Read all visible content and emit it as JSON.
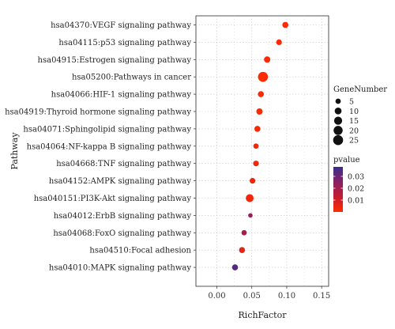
{
  "chart_data": {
    "type": "scatter",
    "xlabel": "RichFactor",
    "ylabel": "Pathway",
    "xlim": [
      -0.03,
      0.16
    ],
    "x_ticks": [
      0.0,
      0.05,
      0.1,
      0.15
    ],
    "x_tick_labels": [
      "0.00",
      "0.05",
      "0.10",
      "0.15"
    ],
    "grid": "dotted",
    "legend_placement": "right",
    "categories": [
      "hsa04370:VEGF signaling pathway",
      "hsa04115:p53 signaling pathway",
      "hsa04915:Estrogen signaling pathway",
      "hsa05200:Pathways in cancer",
      "hsa04066:HIF-1 signaling pathway",
      "hsa04919:Thyroid hormone signaling pathway",
      "hsa04071:Sphingolipid signaling pathway",
      "hsa04064:NF-kappa B signaling pathway",
      "hsa04668:TNF signaling pathway",
      "hsa04152:AMPK signaling pathway",
      "hsa040151:PI3K-Akt signaling pathway",
      "hsa04012:ErbB signaling pathway",
      "hsa04068:FoxO signaling pathway",
      "hsa04510:Focal adhesion",
      "hsa04010:MAPK signaling pathway"
    ],
    "points": [
      {
        "category": "hsa04370:VEGF signaling pathway",
        "x": 0.098,
        "gene_number": 7,
        "pvalue": 0.001
      },
      {
        "category": "hsa04115:p53 signaling pathway",
        "x": 0.089,
        "gene_number": 6,
        "pvalue": 0.001
      },
      {
        "category": "hsa04915:Estrogen signaling pathway",
        "x": 0.072,
        "gene_number": 8,
        "pvalue": 0.001
      },
      {
        "category": "hsa05200:Pathways in cancer",
        "x": 0.066,
        "gene_number": 25,
        "pvalue": 0.0005
      },
      {
        "category": "hsa04066:HIF-1 signaling pathway",
        "x": 0.063,
        "gene_number": 7,
        "pvalue": 0.001
      },
      {
        "category": "hsa04919:Thyroid hormone signaling pathway",
        "x": 0.061,
        "gene_number": 8,
        "pvalue": 0.001
      },
      {
        "category": "hsa04071:Sphingolipid signaling pathway",
        "x": 0.058,
        "gene_number": 7,
        "pvalue": 0.002
      },
      {
        "category": "hsa04064:NF-kappa B signaling pathway",
        "x": 0.056,
        "gene_number": 5,
        "pvalue": 0.003
      },
      {
        "category": "hsa04668:TNF signaling pathway",
        "x": 0.056,
        "gene_number": 6,
        "pvalue": 0.003
      },
      {
        "category": "hsa04152:AMPK signaling pathway",
        "x": 0.051,
        "gene_number": 6,
        "pvalue": 0.004
      },
      {
        "category": "hsa040151:PI3K-Akt signaling pathway",
        "x": 0.047,
        "gene_number": 14,
        "pvalue": 0.003
      },
      {
        "category": "hsa04012:ErbB signaling pathway",
        "x": 0.048,
        "gene_number": 3,
        "pvalue": 0.022
      },
      {
        "category": "hsa04068:FoxO signaling pathway",
        "x": 0.039,
        "gene_number": 5,
        "pvalue": 0.02
      },
      {
        "category": "hsa04510:Focal adhesion",
        "x": 0.036,
        "gene_number": 7,
        "pvalue": 0.006
      },
      {
        "category": "hsa04010:MAPK signaling pathway",
        "x": 0.026,
        "gene_number": 7,
        "pvalue": 0.034
      }
    ],
    "size_legend": {
      "title": "GeneNumber",
      "values": [
        5,
        10,
        15,
        20,
        25
      ],
      "labels": [
        "5",
        "10",
        "15",
        "20",
        "25"
      ]
    },
    "color_legend": {
      "title": "pvalue",
      "range": [
        0.0,
        0.038
      ],
      "ticks": [
        0.01,
        0.02,
        0.03
      ],
      "tick_labels": [
        "0.01",
        "0.02",
        "0.03"
      ],
      "low_color": "#ff2b00",
      "high_color": "#3a2e8c"
    }
  }
}
